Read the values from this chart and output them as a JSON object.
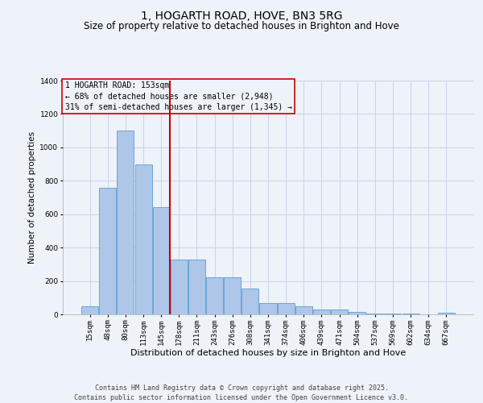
{
  "title": "1, HOGARTH ROAD, HOVE, BN3 5RG",
  "subtitle": "Size of property relative to detached houses in Brighton and Hove",
  "xlabel": "Distribution of detached houses by size in Brighton and Hove",
  "ylabel": "Number of detached properties",
  "footer_line1": "Contains HM Land Registry data © Crown copyright and database right 2025.",
  "footer_line2": "Contains public sector information licensed under the Open Government Licence v3.0.",
  "property_label": "1 HOGARTH ROAD: 153sqm",
  "annotation_line1": "← 68% of detached houses are smaller (2,948)",
  "annotation_line2": "31% of semi-detached houses are larger (1,345) →",
  "categories": [
    "15sqm",
    "48sqm",
    "80sqm",
    "113sqm",
    "145sqm",
    "178sqm",
    "211sqm",
    "243sqm",
    "276sqm",
    "308sqm",
    "341sqm",
    "374sqm",
    "406sqm",
    "439sqm",
    "471sqm",
    "504sqm",
    "537sqm",
    "569sqm",
    "602sqm",
    "634sqm",
    "667sqm"
  ],
  "values": [
    50,
    760,
    1100,
    900,
    640,
    330,
    330,
    220,
    220,
    155,
    70,
    70,
    50,
    30,
    30,
    15,
    5,
    5,
    5,
    2,
    8
  ],
  "bar_color": "#aec6e8",
  "bar_edge_color": "#5a9fd4",
  "line_color": "#cc0000",
  "annotation_box_edge": "#cc0000",
  "background_color": "#eef2f9",
  "grid_color": "#c8d4e8",
  "ylim": [
    0,
    1400
  ],
  "yticks": [
    0,
    200,
    400,
    600,
    800,
    1000,
    1200,
    1400
  ],
  "vline_x_index": 4.5,
  "title_fontsize": 10,
  "subtitle_fontsize": 8.5,
  "ylabel_fontsize": 7.5,
  "xlabel_fontsize": 8,
  "tick_fontsize": 6.5,
  "annotation_fontsize": 7,
  "footer_fontsize": 6
}
